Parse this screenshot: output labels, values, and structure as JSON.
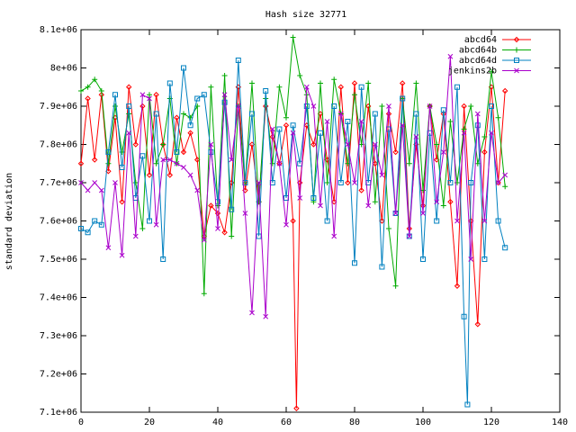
{
  "chart_data": {
    "type": "line",
    "title": "Hash size 32771",
    "xlabel": "",
    "ylabel": "standard deviation",
    "xlim": [
      0,
      140
    ],
    "ylim": [
      7100000,
      8100000
    ],
    "xticks": [
      0,
      20,
      40,
      60,
      80,
      100,
      120,
      140
    ],
    "yticks": [
      7100000,
      7200000,
      7300000,
      7400000,
      7500000,
      7600000,
      7700000,
      7800000,
      7900000,
      8000000,
      8100000
    ],
    "xtick_labels": [
      "0",
      "20",
      "40",
      "60",
      "80",
      "100",
      "120",
      "140"
    ],
    "ytick_labels": [
      "7.1e+06",
      "7.2e+06",
      "7.3e+06",
      "7.4e+06",
      "7.5e+06",
      "7.6e+06",
      "7.7e+06",
      "7.8e+06",
      "7.9e+06",
      "8e+06",
      "8.1e+06"
    ],
    "grid": false,
    "legend": "top-right",
    "series": [
      {
        "name": "abcd64",
        "color": "#ff0000",
        "marker": "diamond",
        "x": [
          0,
          2,
          4,
          6,
          8,
          10,
          12,
          14,
          16,
          18,
          20,
          22,
          24,
          26,
          28,
          30,
          32,
          34,
          36,
          38,
          40,
          42,
          44,
          46,
          48,
          50,
          52,
          54,
          56,
          58,
          60,
          62,
          63,
          64,
          66,
          68,
          70,
          72,
          74,
          76,
          78,
          80,
          82,
          84,
          86,
          88,
          90,
          92,
          94,
          96,
          98,
          100,
          102,
          104,
          106,
          108,
          110,
          112,
          114,
          116,
          118,
          120,
          122,
          124
        ],
        "values": [
          7750000,
          7920000,
          7760000,
          7930000,
          7730000,
          7870000,
          7650000,
          7950000,
          7800000,
          7900000,
          7720000,
          7930000,
          7800000,
          7720000,
          7870000,
          7780000,
          7830000,
          7760000,
          7560000,
          7640000,
          7620000,
          7570000,
          7700000,
          7950000,
          7680000,
          7800000,
          7650000,
          7900000,
          7820000,
          7750000,
          7850000,
          7600000,
          7110000,
          7700000,
          7850000,
          7800000,
          7880000,
          7760000,
          7650000,
          7950000,
          7700000,
          7960000,
          7680000,
          7900000,
          7750000,
          7600000,
          7880000,
          7780000,
          7960000,
          7580000,
          7800000,
          7640000,
          7900000,
          7760000,
          7880000,
          7650000,
          7430000,
          7900000,
          7600000,
          7330000,
          7780000,
          7950000,
          7700000,
          7940000
        ]
      },
      {
        "name": "abcd64b",
        "color": "#00aa00",
        "marker": "plus",
        "x": [
          0,
          2,
          4,
          6,
          8,
          10,
          12,
          14,
          16,
          18,
          20,
          22,
          24,
          26,
          28,
          30,
          32,
          34,
          36,
          38,
          40,
          42,
          44,
          46,
          48,
          50,
          52,
          54,
          56,
          58,
          60,
          62,
          64,
          66,
          68,
          70,
          72,
          74,
          76,
          78,
          80,
          82,
          84,
          86,
          88,
          90,
          92,
          94,
          96,
          98,
          100,
          102,
          104,
          106,
          108,
          110,
          112,
          114,
          116,
          118,
          120,
          122,
          124
        ],
        "values": [
          7940000,
          7950000,
          7970000,
          7940000,
          7750000,
          7900000,
          7780000,
          7880000,
          7700000,
          7580000,
          7930000,
          7750000,
          7800000,
          7920000,
          7750000,
          7880000,
          7870000,
          7900000,
          7410000,
          7950000,
          7640000,
          7980000,
          7560000,
          7900000,
          7700000,
          7960000,
          7650000,
          7920000,
          7750000,
          7950000,
          7870000,
          8080000,
          7980000,
          7930000,
          7650000,
          7960000,
          7700000,
          7970000,
          7880000,
          7750000,
          7930000,
          7800000,
          7960000,
          7650000,
          7900000,
          7580000,
          7430000,
          7920000,
          7750000,
          7960000,
          7680000,
          7900000,
          7800000,
          7640000,
          7860000,
          7700000,
          7840000,
          7900000,
          7750000,
          7820000,
          7990000,
          7870000,
          7690000
        ]
      },
      {
        "name": "abcd64d",
        "color": "#0080c0",
        "marker": "square",
        "x": [
          0,
          2,
          4,
          6,
          8,
          10,
          12,
          14,
          16,
          18,
          20,
          22,
          24,
          26,
          28,
          30,
          32,
          34,
          36,
          38,
          40,
          42,
          44,
          46,
          48,
          50,
          52,
          54,
          56,
          58,
          60,
          62,
          64,
          66,
          68,
          70,
          72,
          74,
          76,
          78,
          80,
          82,
          84,
          86,
          88,
          90,
          92,
          94,
          96,
          98,
          100,
          102,
          104,
          106,
          108,
          110,
          112,
          113,
          114,
          116,
          118,
          120,
          122,
          124
        ],
        "values": [
          7580000,
          7570000,
          7600000,
          7590000,
          7780000,
          7930000,
          7740000,
          7900000,
          7660000,
          7770000,
          7600000,
          7880000,
          7500000,
          7960000,
          7780000,
          8000000,
          7850000,
          7920000,
          7930000,
          7780000,
          7650000,
          7910000,
          7630000,
          8020000,
          7700000,
          7880000,
          7560000,
          7940000,
          7700000,
          7840000,
          7660000,
          7850000,
          7750000,
          7900000,
          7660000,
          7830000,
          7600000,
          7900000,
          7700000,
          7860000,
          7490000,
          7950000,
          7700000,
          7880000,
          7480000,
          7840000,
          7620000,
          7920000,
          7560000,
          7880000,
          7500000,
          7830000,
          7600000,
          7890000,
          7700000,
          7950000,
          7350000,
          7120000,
          7700000,
          7850000,
          7500000,
          7900000,
          7600000,
          7530000
        ]
      },
      {
        "name": "jenkins2b",
        "color": "#aa00cc",
        "marker": "cross",
        "x": [
          0,
          2,
          4,
          6,
          8,
          10,
          12,
          14,
          16,
          18,
          20,
          22,
          24,
          26,
          28,
          30,
          32,
          34,
          36,
          38,
          40,
          42,
          44,
          46,
          48,
          50,
          52,
          54,
          56,
          58,
          60,
          62,
          64,
          66,
          68,
          70,
          72,
          74,
          76,
          78,
          80,
          82,
          84,
          86,
          88,
          90,
          92,
          94,
          96,
          98,
          100,
          102,
          104,
          106,
          108,
          110,
          112,
          114,
          116,
          118,
          120,
          122,
          124
        ],
        "values": [
          7700000,
          7680000,
          7700000,
          7680000,
          7530000,
          7700000,
          7510000,
          7830000,
          7560000,
          7930000,
          7920000,
          7590000,
          7760000,
          7760000,
          7750000,
          7740000,
          7720000,
          7680000,
          7550000,
          7800000,
          7580000,
          7930000,
          7760000,
          7900000,
          7620000,
          7360000,
          7700000,
          7350000,
          7840000,
          7750000,
          7590000,
          7830000,
          7660000,
          7950000,
          7900000,
          7640000,
          7860000,
          7560000,
          7880000,
          7800000,
          7700000,
          7860000,
          7640000,
          7800000,
          7720000,
          7900000,
          7620000,
          7850000,
          7560000,
          7820000,
          7620000,
          7900000,
          7650000,
          7780000,
          8030000,
          7600000,
          7830000,
          7500000,
          7880000,
          7600000,
          7830000,
          7700000,
          7720000
        ]
      }
    ]
  }
}
